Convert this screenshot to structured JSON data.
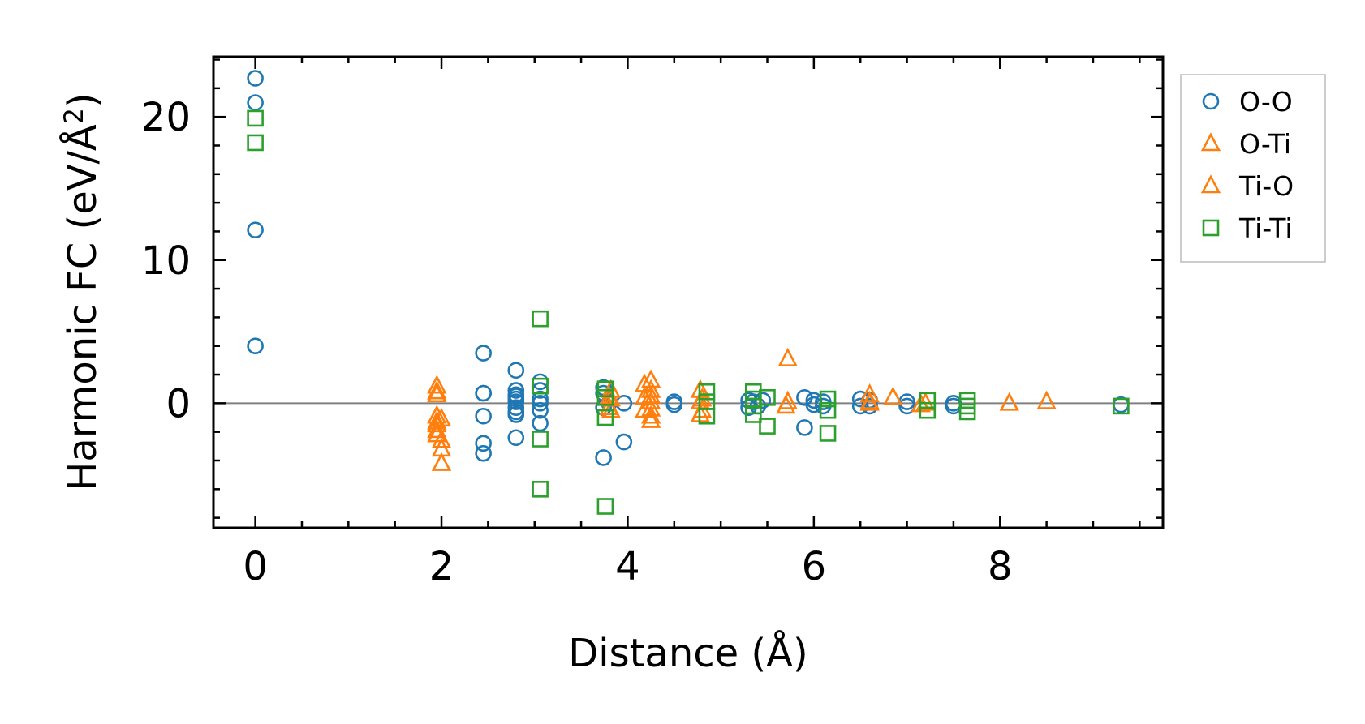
{
  "chart_data": {
    "type": "scatter",
    "xlabel": "Distance (Å)",
    "ylabel": {
      "main": "Harmonic FC (eV/Å",
      "sup": "2",
      "close": ")"
    },
    "xlim": [
      -0.45,
      9.75
    ],
    "ylim": [
      -8.7,
      24.2
    ],
    "x_ticks": [
      0,
      2,
      4,
      6,
      8
    ],
    "x_tick_labels": [
      "0",
      "2",
      "4",
      "6",
      "8"
    ],
    "y_ticks": [
      0,
      10,
      20
    ],
    "y_tick_labels": [
      "0",
      "10",
      "20"
    ],
    "x_minor_step": 0.5,
    "y_minor_step": 2,
    "zero_line": true,
    "legend_position": "outside-right-top",
    "series": [
      {
        "name": "O-O",
        "marker": "circle",
        "color": "#1f77b4",
        "x": [
          0,
          0,
          0,
          0,
          2.45,
          2.45,
          2.45,
          2.45,
          2.45,
          2.45,
          2.8,
          2.8,
          2.8,
          2.8,
          2.8,
          2.8,
          2.8,
          2.8,
          2.8,
          2.8,
          3.06,
          3.06,
          3.06,
          3.06,
          3.06,
          3.06,
          3.74,
          3.74,
          3.74,
          3.74,
          3.8,
          3.96,
          3.96,
          4.5,
          4.5,
          5.3,
          5.3,
          5.35,
          5.4,
          5.45,
          5.9,
          5.9,
          6.0,
          6.0,
          6.1,
          6.1,
          6.5,
          6.5,
          6.6,
          6.6,
          7.0,
          7.0,
          7.5,
          7.5,
          9.3
        ],
        "y": [
          22.7,
          12.1,
          4.0,
          21.0,
          3.5,
          0.7,
          -0.9,
          -2.8,
          -3.5,
          0.7,
          2.3,
          0.9,
          0.6,
          0.3,
          0.1,
          -0.3,
          -0.6,
          -0.8,
          -2.4,
          0.5,
          1.5,
          0.9,
          0.0,
          -0.5,
          -1.4,
          0.3,
          1.1,
          0.7,
          -0.3,
          -3.8,
          0.0,
          0.0,
          -2.7,
          0.1,
          -0.1,
          0.2,
          -0.3,
          0.1,
          -0.2,
          0.2,
          0.4,
          -1.7,
          0.2,
          -0.1,
          0.1,
          -0.2,
          0.3,
          -0.2,
          0.2,
          -0.2,
          0.1,
          -0.2,
          0.0,
          -0.2,
          -0.1
        ]
      },
      {
        "name": "O-Ti",
        "marker": "triangle",
        "color": "#ff7f0e",
        "x": [
          1.95,
          1.95,
          1.95,
          1.95,
          1.95,
          2.0,
          2.0,
          3.82,
          3.82,
          3.82,
          4.18,
          4.18,
          4.18,
          4.25,
          4.25,
          4.25,
          4.25,
          4.78,
          4.78,
          4.78,
          5.72,
          5.72,
          6.6,
          6.6,
          6.85,
          7.2,
          8.1,
          8.5
        ],
        "y": [
          1.2,
          0.6,
          -0.9,
          -1.3,
          -1.9,
          -2.6,
          -4.2,
          0.9,
          0.3,
          -0.5,
          1.3,
          0.4,
          -0.5,
          1.6,
          0.9,
          0.1,
          -0.9,
          0.9,
          0.1,
          -0.8,
          3.1,
          0.1,
          0.6,
          0.0,
          0.4,
          0.0,
          0.0,
          0.1
        ]
      },
      {
        "name": "Ti-O",
        "marker": "triangle",
        "color": "#ff7f0e",
        "x": [
          1.95,
          1.95,
          1.95,
          2.0,
          2.0,
          3.8,
          3.8,
          4.25,
          4.25,
          4.25,
          4.8,
          4.8,
          5.7,
          6.6,
          7.15
        ],
        "y": [
          0.8,
          -1.5,
          -2.2,
          -1.1,
          -3.2,
          0.4,
          -0.3,
          0.5,
          -0.4,
          -1.2,
          0.3,
          -0.5,
          -0.2,
          0.1,
          -0.1
        ]
      },
      {
        "name": "Ti-Ti",
        "marker": "square",
        "color": "#2ca02c",
        "x": [
          0,
          0,
          3.06,
          3.06,
          3.06,
          3.06,
          3.76,
          3.76,
          3.76,
          3.76,
          4.85,
          4.85,
          4.85,
          5.35,
          5.35,
          5.35,
          5.35,
          5.5,
          5.5,
          6.15,
          6.15,
          6.15,
          7.22,
          7.22,
          7.65,
          7.65,
          7.65,
          9.3
        ],
        "y": [
          19.9,
          18.2,
          5.9,
          1.2,
          -2.5,
          -6.0,
          1.0,
          0.4,
          -1.0,
          -7.2,
          0.8,
          0.1,
          -0.9,
          0.8,
          0.3,
          -0.2,
          -0.8,
          0.4,
          -1.6,
          0.3,
          -0.5,
          -2.1,
          0.2,
          -0.5,
          0.2,
          -0.2,
          -0.6,
          -0.2
        ]
      }
    ]
  }
}
